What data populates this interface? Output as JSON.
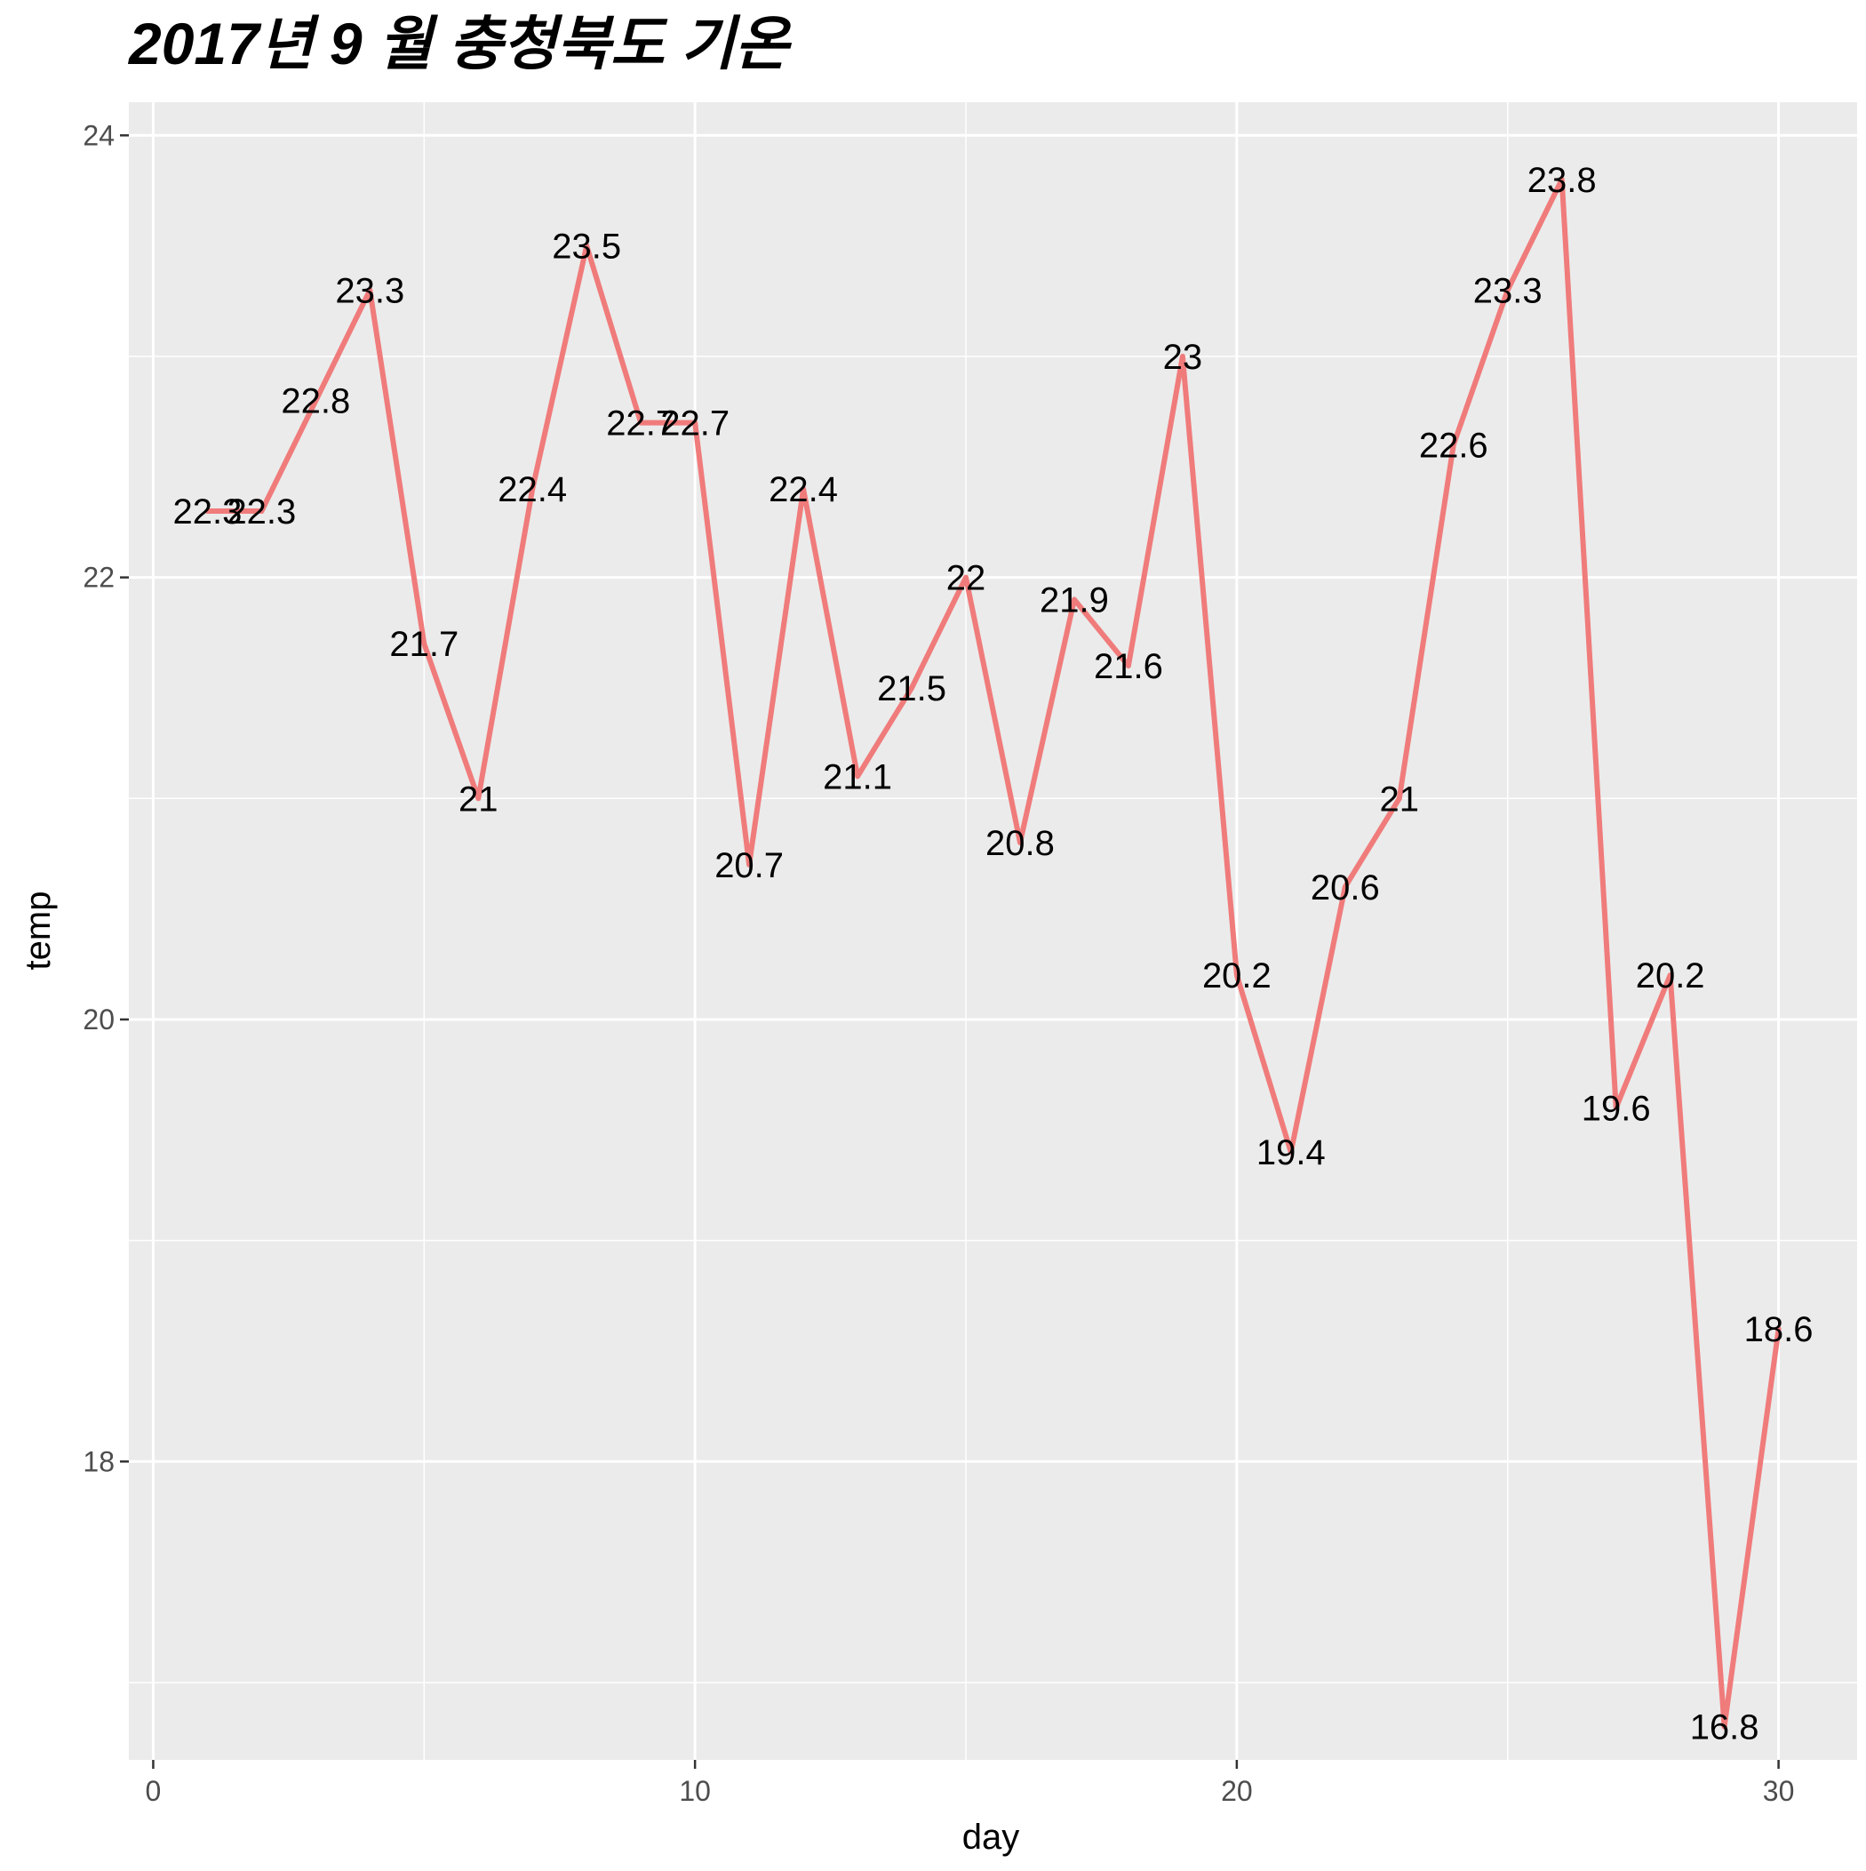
{
  "chart_data": {
    "type": "line",
    "title": "2017년 9 월 충청북도 기온",
    "xlabel": "day",
    "ylabel": "temp",
    "x": [
      1,
      2,
      3,
      4,
      5,
      6,
      7,
      8,
      9,
      10,
      11,
      12,
      13,
      14,
      15,
      16,
      17,
      18,
      19,
      20,
      21,
      22,
      23,
      24,
      25,
      26,
      27,
      28,
      29,
      30
    ],
    "series": [
      {
        "values": [
          22.3,
          22.3,
          22.8,
          23.3,
          21.7,
          21,
          22.4,
          23.5,
          22.7,
          22.7,
          20.7,
          22.4,
          21.1,
          21.5,
          22,
          20.8,
          21.9,
          21.6,
          23,
          20.2,
          19.4,
          20.6,
          21,
          22.6,
          23.3,
          23.8,
          19.6,
          20.2,
          16.8,
          18.6
        ],
        "labels": [
          "22.3",
          "22.3",
          "22.8",
          "23.3",
          "21.7",
          "21",
          "22.4",
          "23.5",
          "22.7",
          "22.7",
          "20.7",
          "22.4",
          "21.1",
          "21.5",
          "22",
          "20.8",
          "21.9",
          "21.6",
          "23",
          "20.2",
          "19.4",
          "20.6",
          "21",
          "22.6",
          "23.3",
          "23.8",
          "19.6",
          "20.2",
          "16.8",
          "18.6"
        ]
      }
    ],
    "xlim": [
      -0.45,
      31.45
    ],
    "ylim": [
      16.65,
      24.15
    ],
    "x_major_ticks": [
      0,
      10,
      20,
      30
    ],
    "x_minor_ticks": [
      5,
      15,
      25
    ],
    "y_major_ticks": [
      18,
      20,
      22,
      24
    ],
    "y_minor_ticks": [
      17,
      19,
      21,
      23
    ],
    "x_tick_labels": [
      "0",
      "10",
      "20",
      "30"
    ],
    "y_tick_labels": [
      "18",
      "20",
      "22",
      "24"
    ],
    "grid": true,
    "legend": "none",
    "colors": {
      "line": "#F07B7B",
      "panel": "#EBEBEB",
      "grid": "#FFFFFF",
      "tick": "#333333"
    }
  }
}
